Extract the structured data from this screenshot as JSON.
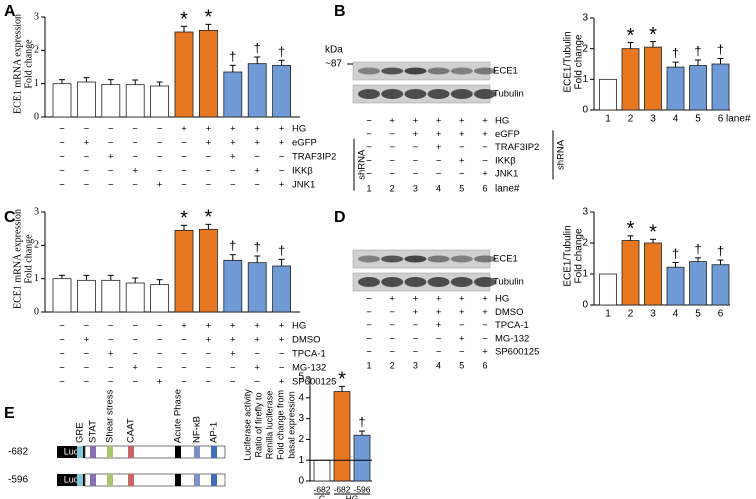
{
  "chart_data": [
    {
      "type": "bar",
      "panel": "A",
      "ylabel": [
        "ECE1 mRNA expression",
        "Fold change"
      ],
      "ylim": [
        0,
        3
      ],
      "yticks": [
        0,
        1,
        2,
        3
      ],
      "values": [
        1.0,
        1.05,
        0.97,
        0.97,
        0.93,
        2.55,
        2.6,
        1.35,
        1.6,
        1.55
      ],
      "errors": [
        0.12,
        0.13,
        0.15,
        0.14,
        0.12,
        0.17,
        0.18,
        0.2,
        0.2,
        0.15
      ],
      "colors": [
        "#ffffff",
        "#ffffff",
        "#ffffff",
        "#ffffff",
        "#ffffff",
        "#e87722",
        "#e87722",
        "#6f9ad6",
        "#6f9ad6",
        "#6f9ad6"
      ],
      "annotations": [
        null,
        null,
        null,
        null,
        null,
        "*",
        "*",
        "†",
        "†",
        "†"
      ],
      "treatments": [
        {
          "label": "HG",
          "signs": [
            "−",
            "−",
            "−",
            "−",
            "−",
            "+",
            "+",
            "+",
            "+",
            "+"
          ]
        },
        {
          "label": "eGFP",
          "signs": [
            "−",
            "+",
            "−",
            "−",
            "−",
            "−",
            "+",
            "+",
            "+",
            "+"
          ]
        },
        {
          "label": "TRAF3IP2",
          "signs": [
            "−",
            "−",
            "+",
            "−",
            "−",
            "−",
            "−",
            "+",
            "−",
            "−"
          ]
        },
        {
          "label": "IKKβ",
          "signs": [
            "−",
            "−",
            "−",
            "+",
            "−",
            "−",
            "−",
            "−",
            "+",
            "−"
          ]
        },
        {
          "label": "JNK1",
          "signs": [
            "−",
            "−",
            "−",
            "−",
            "+",
            "−",
            "−",
            "−",
            "−",
            "+"
          ]
        }
      ],
      "bracket_label": "shRNA"
    },
    {
      "type": "blot",
      "panel": "B",
      "marker_unit": "kDa",
      "marker": "~87",
      "bands": [
        "ECE1",
        "Tubulin"
      ],
      "treatments": [
        {
          "label": "HG",
          "signs": [
            "−",
            "+",
            "+",
            "+",
            "+",
            "+"
          ]
        },
        {
          "label": "eGFP",
          "signs": [
            "−",
            "−",
            "+",
            "+",
            "+",
            "+"
          ]
        },
        {
          "label": "TRAF3IP2",
          "signs": [
            "−",
            "−",
            "−",
            "+",
            "−",
            "−"
          ]
        },
        {
          "label": "IKKβ",
          "signs": [
            "−",
            "−",
            "−",
            "−",
            "+",
            "−"
          ]
        },
        {
          "label": "JNK1",
          "signs": [
            "−",
            "−",
            "−",
            "−",
            "−",
            "+"
          ]
        }
      ],
      "bracket_label": "shRNA",
      "lanes": [
        "1",
        "2",
        "3",
        "4",
        "5",
        "6"
      ],
      "lane_label": "lane#"
    },
    {
      "type": "bar",
      "ylabel": [
        "ECE1/Tubulin",
        "Fold change"
      ],
      "ylim": [
        0,
        3
      ],
      "yticks": [
        0,
        1,
        2,
        3
      ],
      "categories": [
        "1",
        "2",
        "3",
        "4",
        "5",
        "6"
      ],
      "x_label": "lane#",
      "values": [
        1.0,
        2.0,
        2.05,
        1.4,
        1.45,
        1.5
      ],
      "errors": [
        0,
        0.2,
        0.18,
        0.16,
        0.18,
        0.18
      ],
      "colors": [
        "#ffffff",
        "#e87722",
        "#e87722",
        "#6f9ad6",
        "#6f9ad6",
        "#6f9ad6"
      ],
      "annotations": [
        null,
        "*",
        "*",
        "†",
        "†",
        "†"
      ]
    },
    {
      "type": "bar",
      "panel": "C",
      "ylabel": [
        "ECE1 mRNA expression",
        "Fold change"
      ],
      "ylim": [
        0,
        3
      ],
      "yticks": [
        0,
        1,
        2,
        3
      ],
      "values": [
        1.0,
        0.95,
        0.95,
        0.87,
        0.82,
        2.45,
        2.48,
        1.55,
        1.48,
        1.38
      ],
      "errors": [
        0.1,
        0.15,
        0.15,
        0.15,
        0.15,
        0.15,
        0.15,
        0.17,
        0.2,
        0.2
      ],
      "colors": [
        "#ffffff",
        "#ffffff",
        "#ffffff",
        "#ffffff",
        "#ffffff",
        "#e87722",
        "#e87722",
        "#6f9ad6",
        "#6f9ad6",
        "#6f9ad6"
      ],
      "annotations": [
        null,
        null,
        null,
        null,
        null,
        "*",
        "*",
        "†",
        "†",
        "†"
      ],
      "treatments": [
        {
          "label": "HG",
          "signs": [
            "−",
            "−",
            "−",
            "−",
            "−",
            "+",
            "+",
            "+",
            "+",
            "+"
          ]
        },
        {
          "label": "DMSO",
          "signs": [
            "−",
            "+",
            "−",
            "−",
            "−",
            "−",
            "+",
            "+",
            "+",
            "+"
          ]
        },
        {
          "label": "TPCA-1",
          "signs": [
            "−",
            "−",
            "+",
            "−",
            "−",
            "−",
            "−",
            "+",
            "−",
            "−"
          ]
        },
        {
          "label": "MG-132",
          "signs": [
            "−",
            "−",
            "−",
            "+",
            "−",
            "−",
            "−",
            "−",
            "+",
            "−"
          ]
        },
        {
          "label": "SP600125",
          "signs": [
            "−",
            "−",
            "−",
            "−",
            "+",
            "−",
            "−",
            "−",
            "−",
            "+"
          ]
        }
      ]
    },
    {
      "type": "blot",
      "panel": "D",
      "bands": [
        "ECE1",
        "Tubulin"
      ],
      "treatments": [
        {
          "label": "HG",
          "signs": [
            "−",
            "+",
            "+",
            "+",
            "+",
            "+"
          ]
        },
        {
          "label": "DMSO",
          "signs": [
            "−",
            "−",
            "+",
            "+",
            "+",
            "+"
          ]
        },
        {
          "label": "TPCA-1",
          "signs": [
            "−",
            "−",
            "−",
            "+",
            "−",
            "−"
          ]
        },
        {
          "label": "MG-132",
          "signs": [
            "−",
            "−",
            "−",
            "−",
            "+",
            "−"
          ]
        },
        {
          "label": "SP600125",
          "signs": [
            "−",
            "−",
            "−",
            "−",
            "−",
            "+"
          ]
        }
      ],
      "lanes": [
        "1",
        "2",
        "3",
        "4",
        "5",
        "6"
      ]
    },
    {
      "type": "bar",
      "ylabel": [
        "ECE1/Tubulin",
        "Fold change"
      ],
      "ylim": [
        0,
        3
      ],
      "yticks": [
        0,
        1,
        2,
        3
      ],
      "categories": [
        "1",
        "2",
        "3",
        "4",
        "5",
        "6"
      ],
      "values": [
        1.0,
        2.08,
        2.0,
        1.22,
        1.4,
        1.3
      ],
      "errors": [
        0,
        0.15,
        0.12,
        0.15,
        0.12,
        0.15
      ],
      "colors": [
        "#ffffff",
        "#e87722",
        "#e87722",
        "#6f9ad6",
        "#6f9ad6",
        "#6f9ad6"
      ],
      "annotations": [
        null,
        "*",
        "*",
        "†",
        "†",
        "†"
      ]
    },
    {
      "type": "diagram",
      "panel": "E",
      "reporter": "Luc",
      "constructs": [
        "-682",
        "-596"
      ],
      "elements": [
        "GRE",
        "STAT",
        "Shear stress",
        "CAAT",
        "Acute Phase",
        "NF-κB",
        "AP-1"
      ],
      "element_colors": [
        "#7ec8d8",
        "#8a6fb0",
        "#a8c66c",
        "#c86464",
        "#000000",
        "#7d8fc4",
        "#3c6fb4"
      ]
    },
    {
      "type": "bar",
      "ylabel": [
        "Luciferase activity",
        "Ratio of firefly to",
        "Renilla luciferase",
        "Fold change from",
        "basal expression"
      ],
      "ylim": [
        0,
        5
      ],
      "yticks": [
        0,
        1,
        2,
        3,
        4,
        5
      ],
      "categories": [
        "-682",
        "-682",
        "-596"
      ],
      "groups": [
        "C",
        "HG"
      ],
      "values": [
        1.0,
        4.3,
        2.2
      ],
      "errors": [
        0,
        0.25,
        0.2
      ],
      "colors": [
        "#ffffff",
        "#e87722",
        "#6f9ad6"
      ],
      "annotations": [
        null,
        "*",
        "†"
      ],
      "reference_line": 1
    }
  ]
}
